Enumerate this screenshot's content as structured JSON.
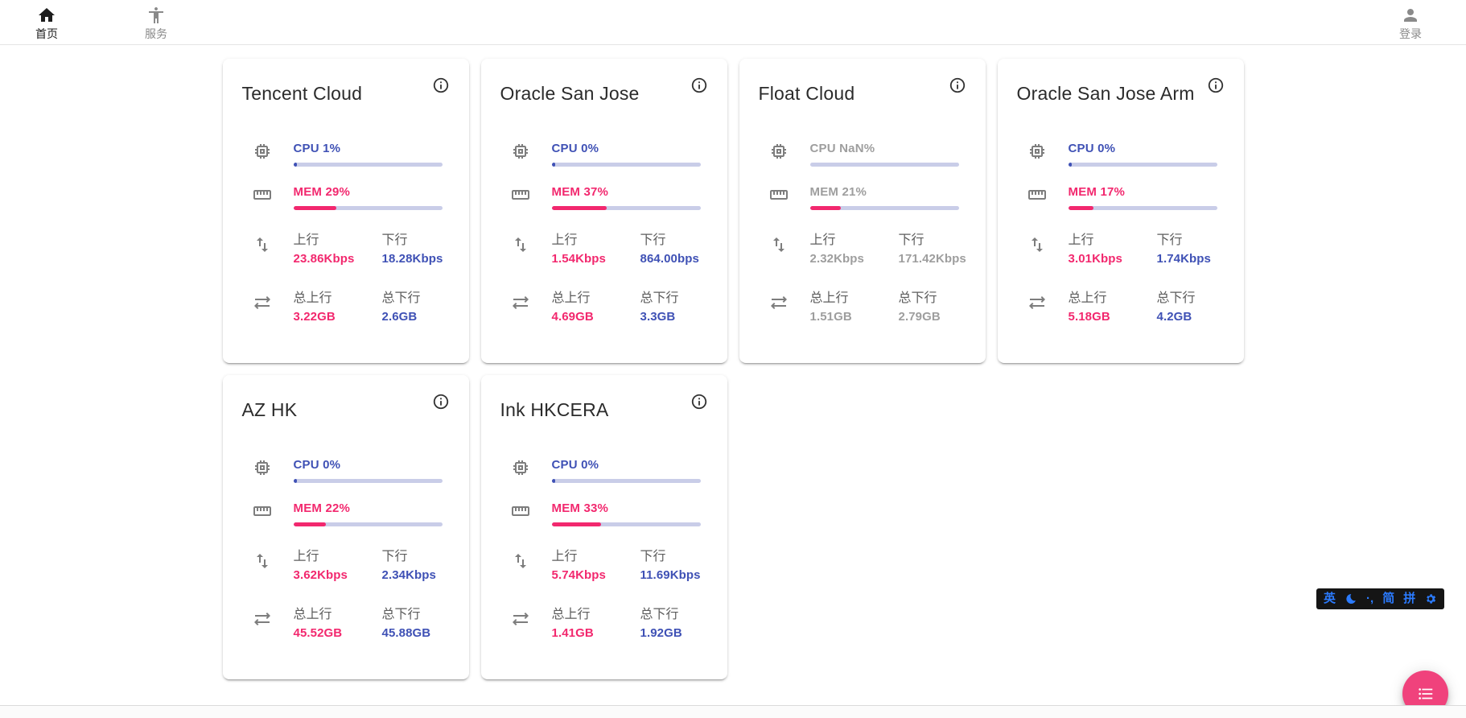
{
  "navbar": {
    "home_label": "首页",
    "services_label": "服务",
    "login_label": "登录"
  },
  "labels": {
    "up": "上行",
    "down": "下行",
    "total_up": "总上行",
    "total_down": "总下行"
  },
  "colors": {
    "cpu_blue": "#3f51b5",
    "mem_pink": "#f2286e",
    "bar_track": "#c9cde8",
    "offline_gray": "#9e9e9e",
    "fab_pink": "#f0427c",
    "ime_blue": "#2b7bff"
  },
  "cards": [
    {
      "title": "Tencent Cloud",
      "cpu_label": "CPU 1%",
      "cpu_percent": 1,
      "mem_label": "MEM 29%",
      "mem_percent": 29,
      "up_value": "23.86Kbps",
      "down_value": "18.28Kbps",
      "total_up_value": "3.22GB",
      "total_down_value": "2.6GB",
      "offline": false
    },
    {
      "title": "Oracle San Jose",
      "cpu_label": "CPU 0%",
      "cpu_percent": 0,
      "mem_label": "MEM 37%",
      "mem_percent": 37,
      "up_value": "1.54Kbps",
      "down_value": "864.00bps",
      "total_up_value": "4.69GB",
      "total_down_value": "3.3GB",
      "offline": false
    },
    {
      "title": "Float Cloud",
      "cpu_label": "CPU NaN%",
      "cpu_percent": null,
      "mem_label": "MEM 21%",
      "mem_percent": 21,
      "up_value": "2.32Kbps",
      "down_value": "171.42Kbps",
      "total_up_value": "1.51GB",
      "total_down_value": "2.79GB",
      "offline": true
    },
    {
      "title": "Oracle San Jose Arm",
      "cpu_label": "CPU 0%",
      "cpu_percent": 0,
      "mem_label": "MEM 17%",
      "mem_percent": 17,
      "up_value": "3.01Kbps",
      "down_value": "1.74Kbps",
      "total_up_value": "5.18GB",
      "total_down_value": "4.2GB",
      "offline": false
    },
    {
      "title": "AZ HK",
      "cpu_label": "CPU 0%",
      "cpu_percent": 0,
      "mem_label": "MEM 22%",
      "mem_percent": 22,
      "up_value": "3.62Kbps",
      "down_value": "2.34Kbps",
      "total_up_value": "45.52GB",
      "total_down_value": "45.88GB",
      "offline": false
    },
    {
      "title": "Ink HKCERA",
      "cpu_label": "CPU 0%",
      "cpu_percent": 0,
      "mem_label": "MEM 33%",
      "mem_percent": 33,
      "up_value": "5.74Kbps",
      "down_value": "11.69Kbps",
      "total_up_value": "1.41GB",
      "total_down_value": "1.92GB",
      "offline": false
    }
  ],
  "ime": {
    "english_mode": "英",
    "punctuation_mode": "·,",
    "simplified": "简",
    "pinyin": "拼"
  }
}
